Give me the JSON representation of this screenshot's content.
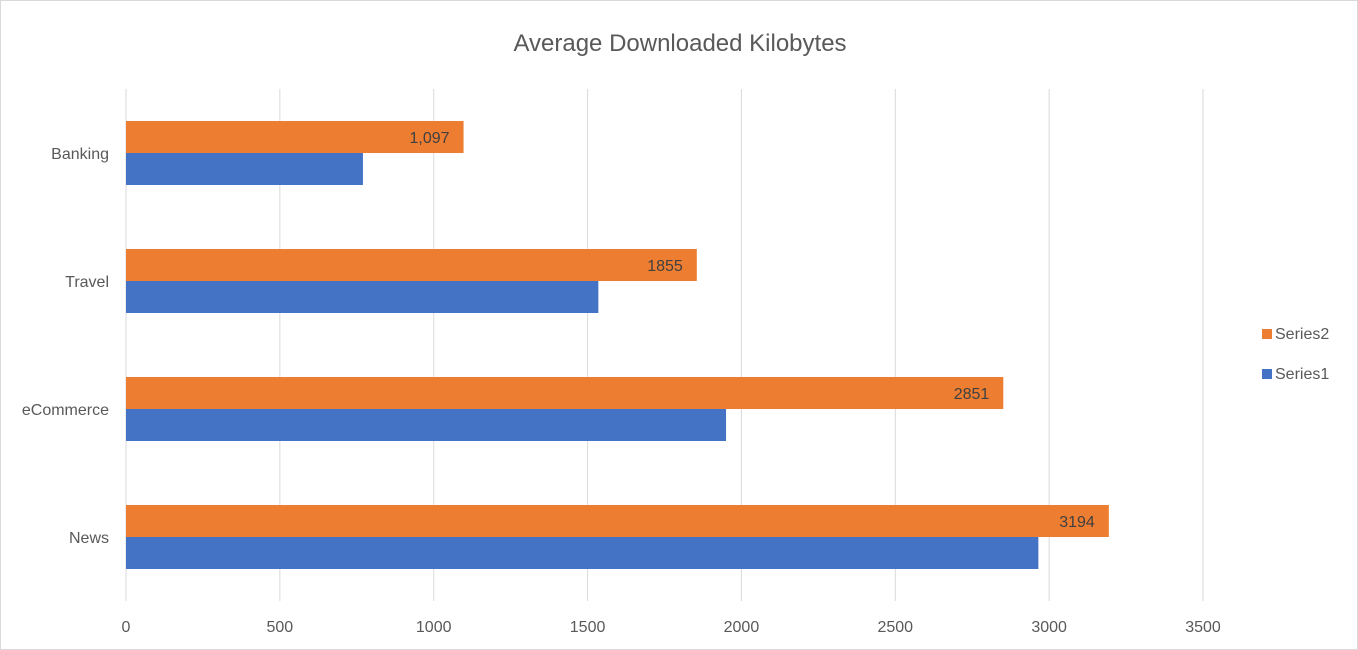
{
  "chart_data": {
    "type": "bar",
    "orientation": "horizontal",
    "title": "Average Downloaded Kilobytes",
    "categories": [
      "Banking",
      "Travel",
      "eCommerce",
      "News"
    ],
    "series": [
      {
        "name": "Series2",
        "color": "#ED7D31",
        "values": [
          1097,
          1855,
          2851,
          3194
        ],
        "labels": [
          "1,097",
          "1855",
          "2851",
          "3194"
        ]
      },
      {
        "name": "Series1",
        "color": "#4472C4",
        "values": [
          770,
          1535,
          1950,
          2965
        ]
      }
    ],
    "xlim": [
      0,
      3500
    ],
    "xticks": [
      "0",
      "500",
      "1000",
      "1500",
      "2000",
      "2500",
      "3000",
      "3500"
    ],
    "grid": true,
    "legend_position": "right"
  }
}
